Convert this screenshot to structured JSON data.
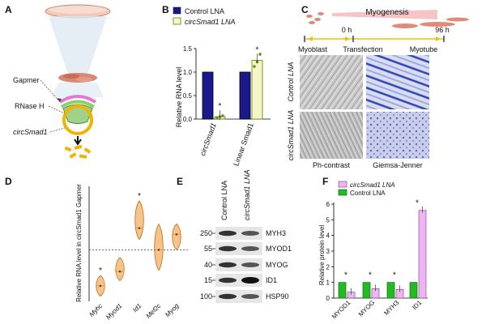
{
  "panels": {
    "A": {
      "letter": "A",
      "labels": {
        "gapmer": "Gapmer",
        "rnaseh": "RNase H",
        "circsmad1": "circSmad1"
      }
    },
    "B": {
      "letter": "B",
      "legend": [
        {
          "label": "Control LNA",
          "color": "#1a1a8c"
        },
        {
          "label": "circSmad1 LNA",
          "color": "#f4f6c8"
        }
      ],
      "chart_data": {
        "type": "bar",
        "ylabel": "Relative RNA level",
        "yticks": [
          "0.0",
          "0.5",
          "1.0",
          "1.5"
        ],
        "ylim": [
          0,
          1.5
        ],
        "categories": [
          "circSmad1",
          "Linear Smad1"
        ],
        "series": [
          {
            "name": "Control LNA",
            "values": [
              1.0,
              1.0
            ]
          },
          {
            "name": "circSmad1 LNA",
            "values": [
              0.05,
              1.25
            ]
          }
        ],
        "points": [
          [
            0.03,
            0.05,
            0.07
          ],
          [
            1.12,
            1.22,
            1.38
          ]
        ],
        "annotations": [
          "*",
          "*"
        ]
      }
    },
    "C": {
      "letter": "C",
      "title": "Myogenesis",
      "time_start": "0 h",
      "time_end": "96 h",
      "stages": [
        "Myoblast",
        "Transfection",
        "Myotube"
      ],
      "row_labels": [
        "Control LNA",
        "circSmad1 LNA"
      ],
      "col_labels": [
        "Ph-contrast",
        "Giemsa-Jenner"
      ]
    },
    "D": {
      "letter": "D",
      "chart_data": {
        "type": "violin",
        "ylabel": "Relative RNA level in circSmad1 Gapmer",
        "categories": [
          "Myhc",
          "Myod1",
          "Id1",
          "Mef2c",
          "Myog"
        ],
        "medians": [
          0.3,
          0.58,
          1.42,
          1.0,
          1.3
        ],
        "ranges": [
          [
            0.1,
            0.5
          ],
          [
            0.4,
            0.85
          ],
          [
            1.2,
            1.95
          ],
          [
            0.6,
            1.5
          ],
          [
            1.0,
            1.5
          ]
        ],
        "annotations": [
          "*",
          "",
          "*",
          "",
          ""
        ],
        "reference_line": 1.0
      }
    },
    "E": {
      "letter": "E",
      "columns": [
        "Control LNA",
        "circSmad1 LNA"
      ],
      "rows": [
        {
          "marker": "250",
          "protein": "MYH3"
        },
        {
          "marker": "55",
          "protein": "MYOD1"
        },
        {
          "marker": "40",
          "protein": "MYOG"
        },
        {
          "marker": "15",
          "protein": "ID1"
        },
        {
          "marker": "100",
          "protein": "HSP90"
        }
      ]
    },
    "F": {
      "letter": "F",
      "legend": [
        {
          "label": "circSmad1 LNA",
          "color": "#eab8ee"
        },
        {
          "label": "Control LNA",
          "color": "#22bb22"
        }
      ],
      "chart_data": {
        "type": "bar",
        "ylabel": "Relative protein level",
        "yticks": [
          "0",
          "1",
          "2",
          "3",
          "4",
          "5",
          "6"
        ],
        "ylim": [
          0,
          6
        ],
        "categories": [
          "MYOD1",
          "MYOG",
          "MYH3",
          "ID1"
        ],
        "series": [
          {
            "name": "Control LNA",
            "values": [
              1,
              1,
              1,
              1
            ]
          },
          {
            "name": "circSmad1 LNA",
            "values": [
              0.38,
              0.6,
              0.55,
              5.6
            ]
          }
        ],
        "annotations": [
          "*",
          "*",
          "*",
          "*"
        ]
      }
    }
  }
}
